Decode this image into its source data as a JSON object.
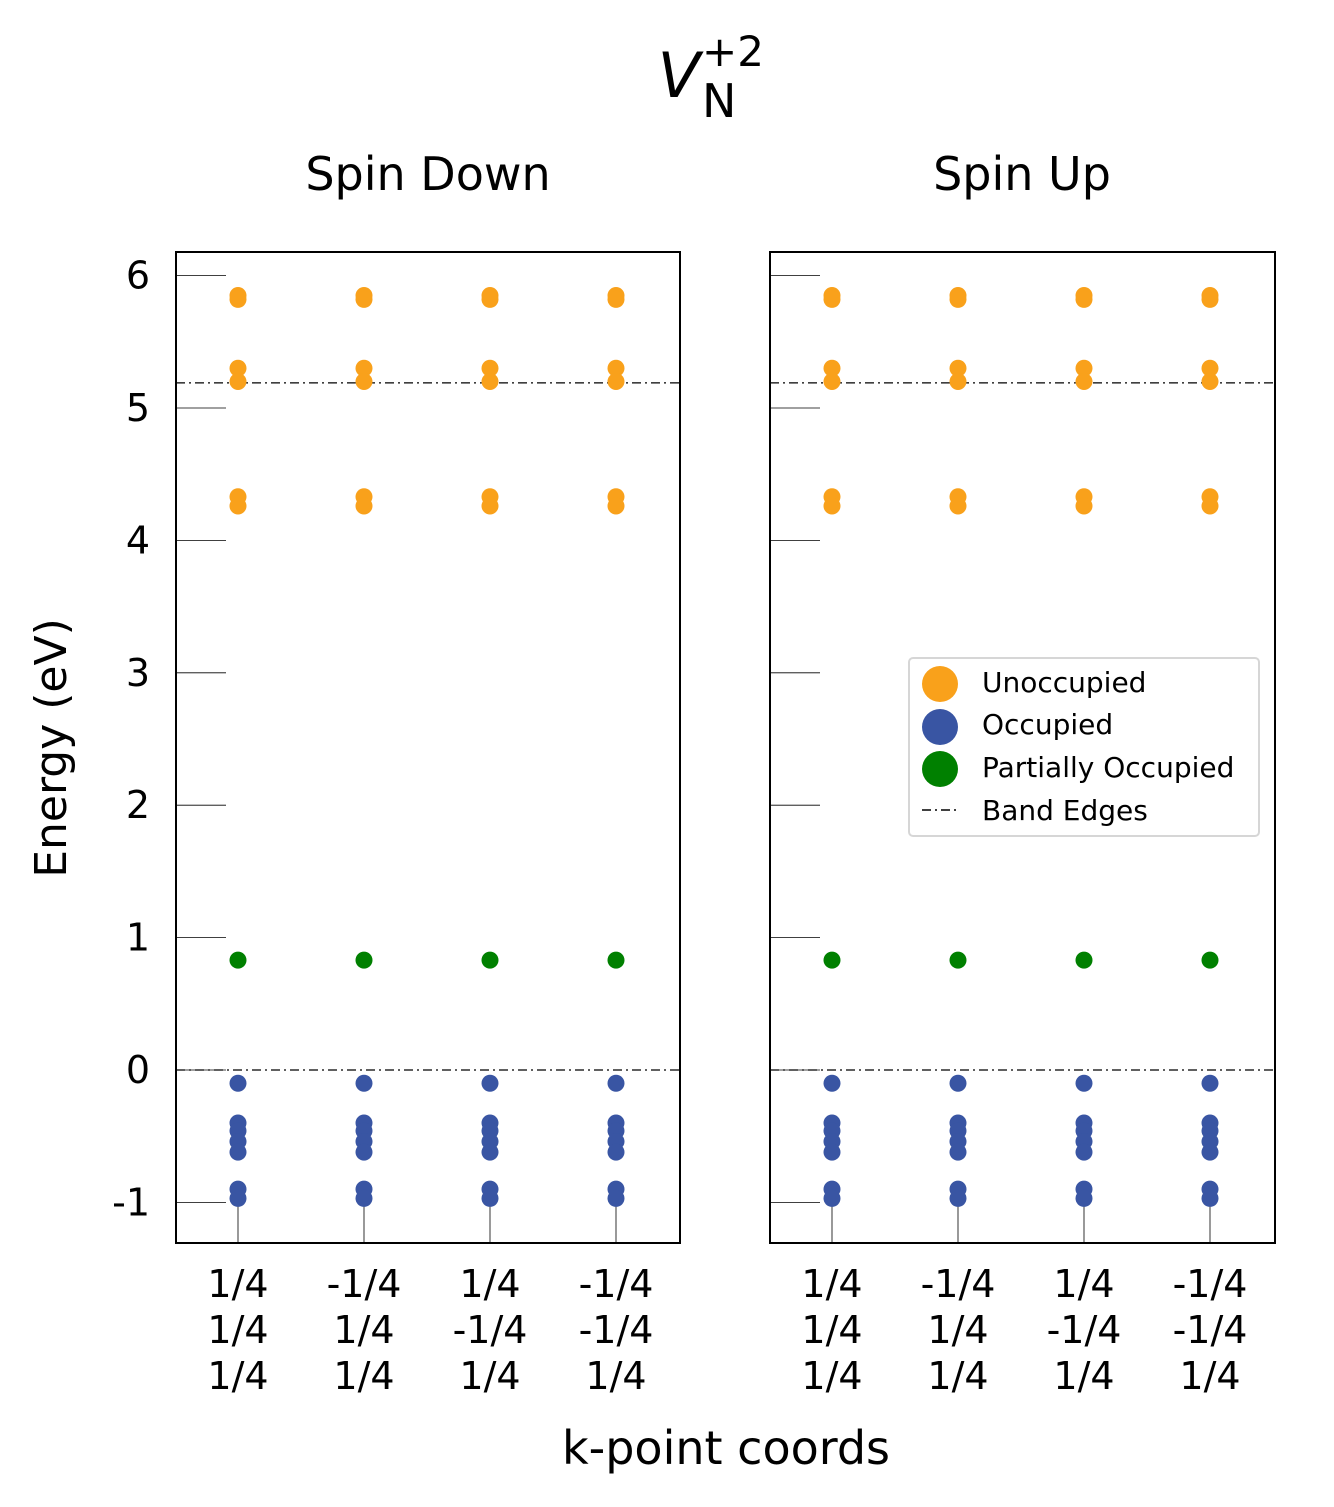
{
  "title": {
    "main": "V",
    "superscript": "+2",
    "subscript": "N"
  },
  "ylabel": "Energy (eV)",
  "xlabel": "k-point coords",
  "colors": {
    "unoccupied": "#f9a11b",
    "occupied": "#3955a3",
    "partial": "#008000",
    "frame": "#000000"
  },
  "chart_data": {
    "type": "scatter",
    "y_ticks": [
      -1,
      0,
      1,
      2,
      3,
      4,
      5,
      6
    ],
    "ylim": [
      -1.3,
      6.2
    ],
    "band_edges": [
      0.0,
      5.19
    ],
    "kpoints": [
      [
        "1/4",
        "1/4",
        "1/4"
      ],
      [
        "-1/4",
        "1/4",
        "1/4"
      ],
      [
        "1/4",
        "-1/4",
        "1/4"
      ],
      [
        "-1/4",
        "-1/4",
        "1/4"
      ]
    ],
    "legend": {
      "position": "center-right",
      "entries": [
        "Unoccupied",
        "Occupied",
        "Partially Occupied",
        "Band Edges"
      ]
    },
    "panels": [
      {
        "title": "Spin Down",
        "unoccupied": [
          5.85,
          5.82,
          5.3,
          5.2,
          4.33,
          4.26
        ],
        "partially_occupied": [
          0.83
        ],
        "occupied": [
          -0.1,
          -0.4,
          -0.46,
          -0.54,
          -0.62,
          -0.9,
          -0.97
        ]
      },
      {
        "title": "Spin Up",
        "unoccupied": [
          5.85,
          5.82,
          5.3,
          5.2,
          4.33,
          4.26
        ],
        "partially_occupied": [
          0.83
        ],
        "occupied": [
          -0.1,
          -0.4,
          -0.46,
          -0.54,
          -0.62,
          -0.9,
          -0.97
        ]
      }
    ]
  }
}
